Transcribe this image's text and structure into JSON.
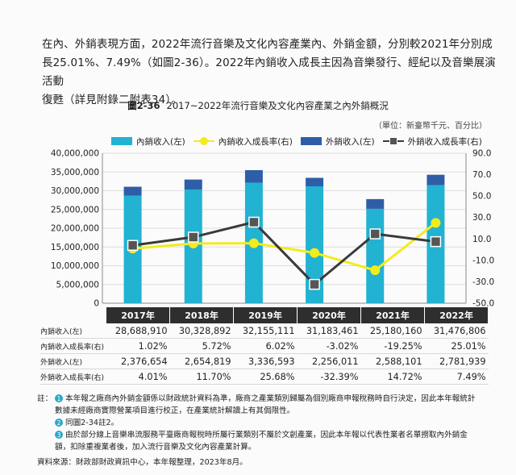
{
  "paragraph": {
    "line1": "在內、外銷表現方面，2022年流行音樂及文化內容產業內、外銷金額，分別較2021年分別成",
    "line2": "長25.01%、7.49%（如圖2-36）。2022年內銷收入成長主因為音樂發行、經紀以及音樂展演活動",
    "line3": "復甦（詳見附錄二附表34）。"
  },
  "figure": {
    "number": "圖2-36",
    "title": "2017~2022年流行音樂及文化內容產業之內外銷概況",
    "unit": "（單位：新臺幣千元、百分比）"
  },
  "legend": {
    "domestic": "內銷收入(左)",
    "domestic_growth": "內銷收入成長率(右)",
    "export": "外銷收入(左)",
    "export_growth": "外銷收入成長率(右)"
  },
  "colors": {
    "domestic": "#22b2d2",
    "export": "#2f5ea8",
    "domestic_growth": "#f2ec1c",
    "export_growth": "#3a3a3a"
  },
  "chart_data": {
    "type": "bar",
    "stacked": true,
    "categories": [
      "2017年",
      "2018年",
      "2019年",
      "2020年",
      "2021年",
      "2022年"
    ],
    "series": [
      {
        "name": "內銷收入(左)",
        "values": [
          28688910,
          30328892,
          32155111,
          31183461,
          25180160,
          31476806
        ],
        "axis": "left"
      },
      {
        "name": "外銷收入(左)",
        "values": [
          2376654,
          2654819,
          3336593,
          2256011,
          2588101,
          2781939
        ],
        "axis": "left"
      },
      {
        "name": "內銷收入成長率(右)",
        "type": "line",
        "values": [
          1.02,
          5.72,
          6.02,
          -3.02,
          -19.25,
          25.01
        ],
        "axis": "right"
      },
      {
        "name": "外銷收入成長率(右)",
        "type": "line",
        "values": [
          4.01,
          11.7,
          25.68,
          -32.39,
          14.72,
          7.49
        ],
        "axis": "right"
      }
    ],
    "left_axis": {
      "ylim": [
        0,
        40000000
      ],
      "ticks": [
        "0",
        "5,000,000",
        "10,000,000",
        "15,000,000",
        "20,000,000",
        "25,000,000",
        "30,000,000",
        "35,000,000",
        "40,000,000"
      ]
    },
    "right_axis": {
      "ylim": [
        -50,
        90
      ],
      "ticks": [
        "-50.0",
        "-30.0",
        "-10.0",
        "10.0",
        "30.0",
        "50.0",
        "70.0",
        "90.0"
      ]
    },
    "legend_position": "top"
  },
  "table": {
    "headers": [
      "2017年",
      "2018年",
      "2019年",
      "2020年",
      "2021年",
      "2022年"
    ],
    "rows": [
      {
        "label": "內銷收入(左)",
        "cells": [
          "28,688,910",
          "30,328,892",
          "32,155,111",
          "31,183,461",
          "25,180,160",
          "31,476,806"
        ]
      },
      {
        "label": "內銷收入成長率(右)",
        "cells": [
          "1.02%",
          "5.72%",
          "6.02%",
          "-3.02%",
          "-19.25%",
          "25.01%"
        ]
      },
      {
        "label": "外銷收入(左)",
        "cells": [
          "2,376,654",
          "2,654,819",
          "3,336,593",
          "2,256,011",
          "2,588,101",
          "2,781,939"
        ]
      },
      {
        "label": "外銷收入成長率(右)",
        "cells": [
          "4.01%",
          "11.70%",
          "25.68%",
          "-32.39%",
          "14.72%",
          "7.49%"
        ]
      }
    ]
  },
  "notes": {
    "label": "註：",
    "items": [
      {
        "num": "1",
        "text": "本年報之廠商內外銷金額係以財政統計資料為準，廠商之產業類別歸屬為個別廠商申報稅務時自行決定，因此本年報統計",
        "cont": "數據未經廠商實際營業項目進行校正，在產業統計解讀上有其侷限性。"
      },
      {
        "num": "2",
        "text": "同圖2-34註2。",
        "cont": ""
      },
      {
        "num": "3",
        "text": "由於部分線上音樂串流服務平臺廠商報稅時所屬行業類別不屬於文創產業，因此本年報以代表性業者名單撈取內外銷金",
        "cont": "額，扣除重複業者後，加入流行音樂及文化內容產業計算。"
      }
    ]
  },
  "source": "資料來源：財政部財政資訊中心，本年報整理，2023年8月。"
}
